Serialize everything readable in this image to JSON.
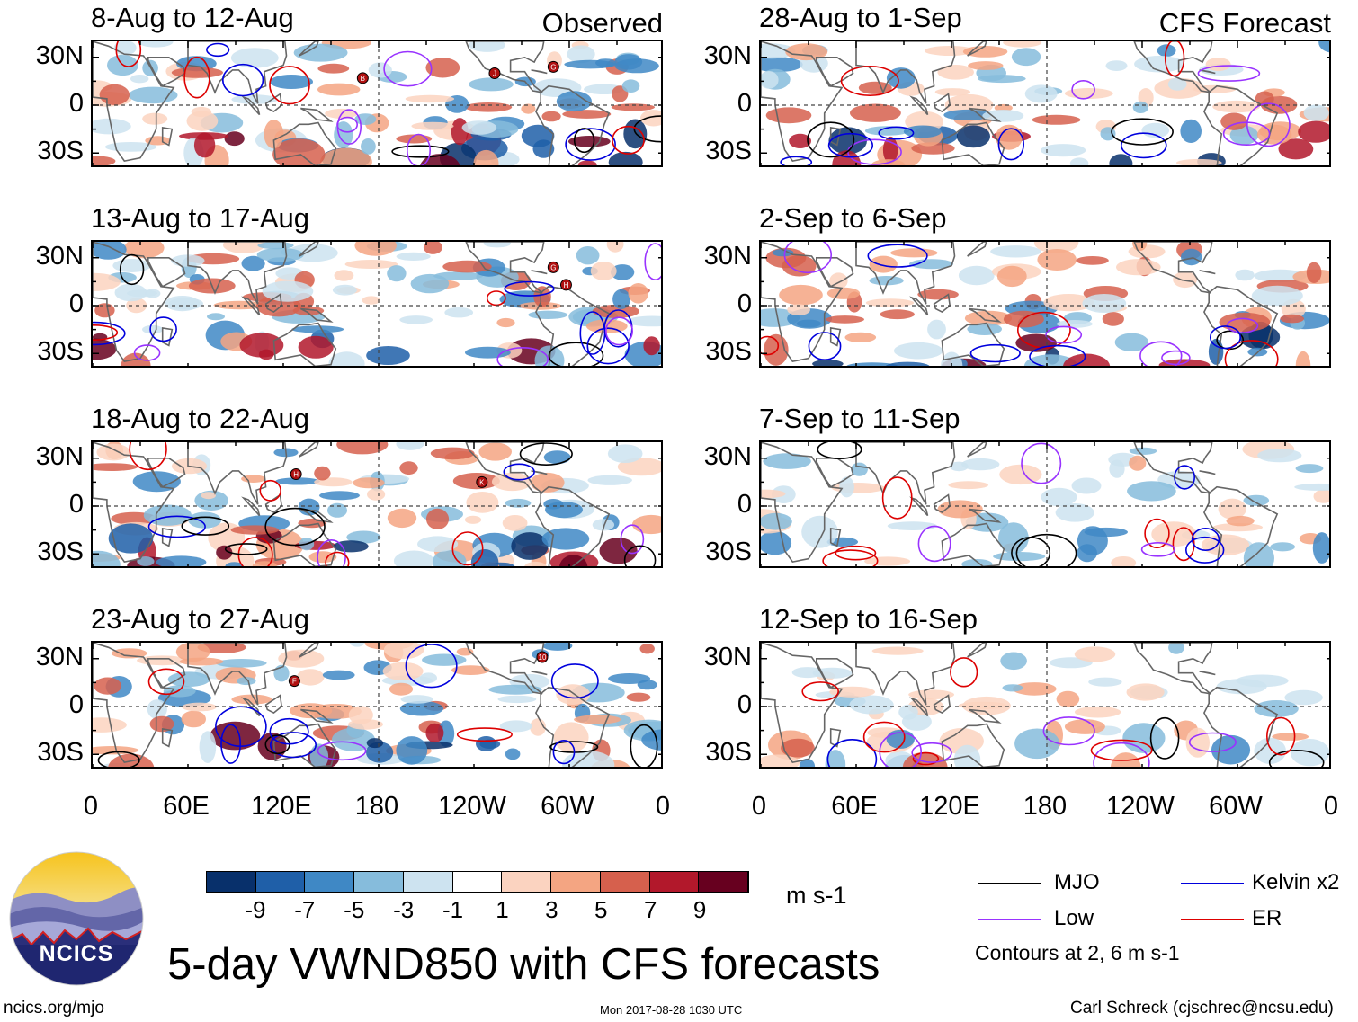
{
  "panels": [
    {
      "period": "8-Aug to 12-Aug",
      "label": "Observed",
      "col": 0,
      "row": 0,
      "seed": 3,
      "storms": [
        {
          "letter": "B",
          "lon": 170,
          "lat": 17
        },
        {
          "letter": "J",
          "lon": 253,
          "lat": 20
        },
        {
          "letter": "G",
          "lon": 290,
          "lat": 24
        }
      ]
    },
    {
      "period": "13-Aug to 17-Aug",
      "label": "",
      "col": 0,
      "row": 1,
      "seed": 7,
      "storms": [
        {
          "letter": "G",
          "lon": 290,
          "lat": 24
        },
        {
          "letter": "H",
          "lon": 298,
          "lat": 13
        }
      ]
    },
    {
      "period": "18-Aug to 22-Aug",
      "label": "",
      "col": 0,
      "row": 2,
      "seed": 11,
      "storms": [
        {
          "letter": "H",
          "lon": 128,
          "lat": 20
        },
        {
          "letter": "K",
          "lon": 245,
          "lat": 15
        }
      ]
    },
    {
      "period": "23-Aug to 27-Aug",
      "label": "",
      "col": 0,
      "row": 3,
      "seed": 19,
      "storms": [
        {
          "letter": "F",
          "lon": 127,
          "lat": 16
        },
        {
          "letter": "10",
          "lon": 283,
          "lat": 31
        }
      ]
    },
    {
      "period": "28-Aug to 1-Sep",
      "label": "CFS Forecast",
      "col": 1,
      "row": 0,
      "seed": 23,
      "storms": []
    },
    {
      "period": "2-Sep to 6-Sep",
      "label": "",
      "col": 1,
      "row": 1,
      "seed": 29,
      "storms": []
    },
    {
      "period": "7-Sep to 11-Sep",
      "label": "",
      "col": 1,
      "row": 2,
      "seed": 31,
      "storms": []
    },
    {
      "period": "12-Sep to 16-Sep",
      "label": "",
      "col": 1,
      "row": 3,
      "seed": 37,
      "storms": []
    }
  ],
  "lat_ticks": [
    "30N",
    "0",
    "30S"
  ],
  "lon_ticks": [
    "0",
    "60E",
    "120E",
    "180",
    "120W",
    "60W",
    "0"
  ],
  "colorbar": {
    "colors": [
      "#08306b",
      "#1f5fa8",
      "#3f88c5",
      "#86bcdc",
      "#cde3f0",
      "#ffffff",
      "#fbd3c0",
      "#f4a582",
      "#d6604d",
      "#b2182b",
      "#67001f"
    ],
    "tick_labels": [
      "-9",
      "-7",
      "-5",
      "-3",
      "-1",
      "1",
      "3",
      "5",
      "7",
      "9"
    ],
    "unit": "m s-1"
  },
  "legend": {
    "items": [
      {
        "name": "MJO",
        "color": "#000000"
      },
      {
        "name": "Kelvin x2",
        "color": "#0000dd"
      },
      {
        "name": "Low",
        "color": "#9933ff"
      },
      {
        "name": "ER",
        "color": "#dd0000"
      }
    ],
    "note": "Contours at 2, 6 m s-1"
  },
  "logo_text": "NCICS",
  "title": "5-day VWND850 with CFS forecasts",
  "footer": {
    "website": "ncics.org/mjo",
    "timestamp": "Mon 2017-08-28 1030 UTC",
    "author": "Carl Schreck (cjschrec@ncsu.edu)"
  }
}
